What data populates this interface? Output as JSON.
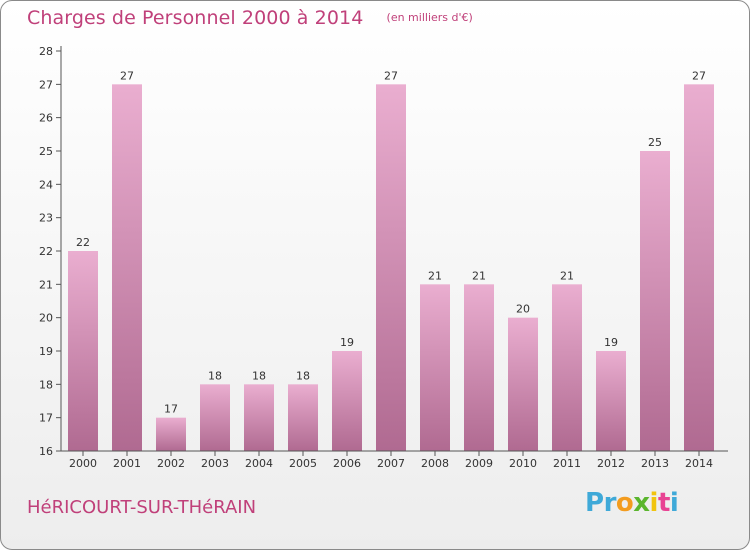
{
  "header": {
    "title": "Charges de Personnel 2000 à 2014",
    "subtitle": "(en milliers d'€)"
  },
  "footer": {
    "city": "HéRICOURT-SUR-THéRAIN",
    "logo": [
      "P",
      "r",
      "o",
      "x",
      "i",
      "t",
      "i"
    ],
    "logo_colors": [
      "#3fa9d8",
      "#3fa9d8",
      "#f39c1f",
      "#5ab52d",
      "#f1c40f",
      "#e84393",
      "#3fa9d8"
    ]
  },
  "colors": {
    "bar_light": "#eaaed0",
    "bar_dark": "#b06a91",
    "text": "#c0407a"
  },
  "chart_data": {
    "type": "bar",
    "categories": [
      "2000",
      "2001",
      "2002",
      "2003",
      "2004",
      "2005",
      "2006",
      "2007",
      "2008",
      "2009",
      "2010",
      "2011",
      "2012",
      "2013",
      "2014"
    ],
    "values": [
      22,
      27,
      17,
      18,
      18,
      18,
      19,
      27,
      21,
      21,
      20,
      21,
      19,
      25,
      27
    ],
    "title": "Charges de Personnel 2000 à 2014",
    "subtitle": "(en milliers d'€)",
    "xlabel": "",
    "ylabel": "",
    "ylim": [
      16,
      28
    ],
    "yticks": [
      16,
      17,
      18,
      19,
      20,
      21,
      22,
      23,
      24,
      25,
      26,
      27,
      28
    ],
    "grid": false,
    "data_labels": true
  }
}
